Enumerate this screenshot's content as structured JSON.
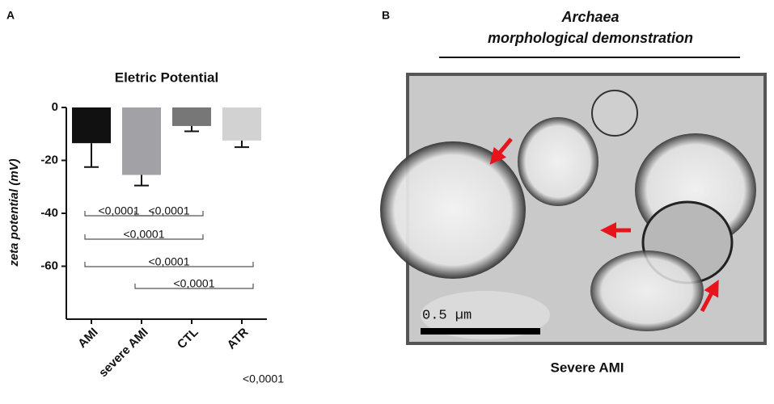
{
  "panel_labels": [
    "A",
    "B"
  ],
  "chart_data": {
    "type": "bar",
    "title": "Eletric Potential",
    "y_label": "zeta potential (mV)",
    "categories": [
      "AMI",
      "severe AMI",
      "CTL",
      "ATR"
    ],
    "values": [
      -13.5,
      -25.5,
      -7,
      -12.5
    ],
    "errors": [
      9,
      4,
      2,
      2.5
    ],
    "colors": [
      "#111111",
      "#a2a2a6",
      "#777777",
      "#d2d2d2"
    ],
    "ylim": [
      -80,
      0
    ],
    "yticks": [
      0,
      -20,
      -40,
      -60
    ],
    "comparisons": [
      {
        "groups": [
          0,
          1
        ],
        "label": "<0,0001"
      },
      {
        "groups": [
          1,
          2
        ],
        "label": "<0,0001"
      },
      {
        "groups": [
          0,
          2
        ],
        "label": "<0,0001"
      },
      {
        "groups": [
          0,
          3
        ],
        "label": "<0,0001"
      },
      {
        "groups": [
          1,
          3
        ],
        "label": "<0,0001"
      }
    ],
    "footnote": "<0,0001"
  },
  "panel_b": {
    "title_line1": "Archaea",
    "title_line2": "morphological demonstration",
    "scale_bar": "0.5 µm",
    "caption": "Severe AMI"
  }
}
